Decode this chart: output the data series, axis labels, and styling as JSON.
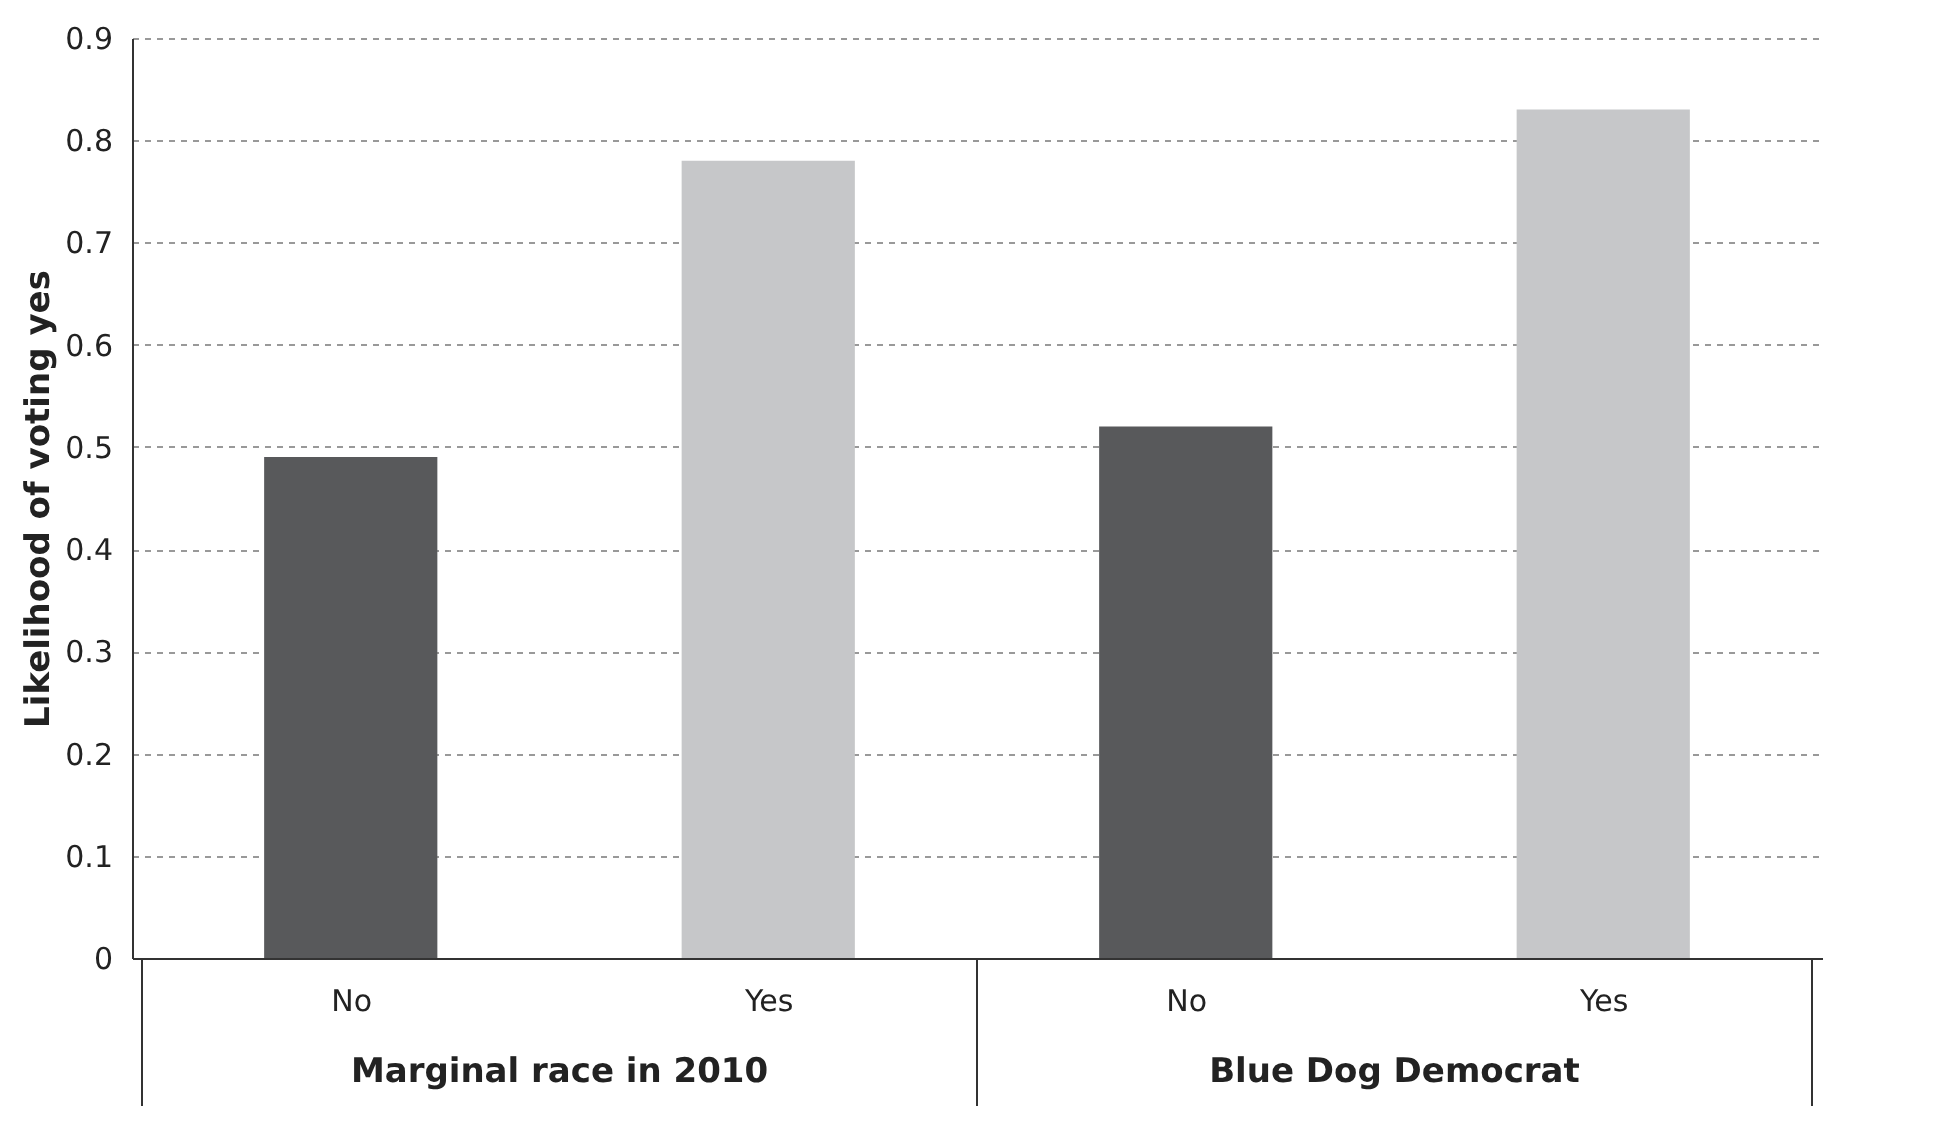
{
  "chart_data": {
    "type": "bar",
    "ylabel": "Likelihood of voting yes",
    "categories": [
      "No",
      "Yes",
      "No",
      "Yes"
    ],
    "values": [
      0.49,
      0.78,
      0.52,
      0.83
    ],
    "colors": [
      "#58595b",
      "#c6c7c9",
      "#58595b",
      "#c6c7c9"
    ],
    "annotations": [
      "Marginal race in 2010",
      "Blue Dog Democrat"
    ],
    "ylim": [
      0,
      0.9
    ],
    "yticks": [
      0,
      0.1,
      0.2,
      0.3,
      0.4,
      0.5,
      0.6,
      0.7,
      0.8,
      0.9
    ],
    "grid": "y"
  }
}
